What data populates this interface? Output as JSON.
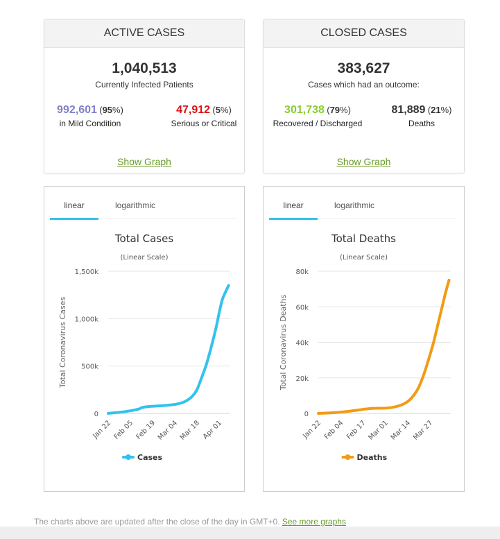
{
  "active_cases": {
    "title": "ACTIVE CASES",
    "total": "1,040,513",
    "total_label": "Currently Infected Patients",
    "mild": {
      "value": "992,601",
      "pct_open": "(",
      "pct": "95",
      "pct_close": "%)",
      "label": "in Mild Condition",
      "color": "#8080cc"
    },
    "serious": {
      "value": "47,912",
      "pct_open": "(",
      "pct": "5",
      "pct_close": "%)",
      "label": "Serious or Critical",
      "color": "#dd1111"
    },
    "show_graph": "Show Graph"
  },
  "closed_cases": {
    "title": "CLOSED CASES",
    "total": "383,627",
    "total_label": "Cases which had an outcome:",
    "recovered": {
      "value": "301,738",
      "pct_open": "(",
      "pct": "79",
      "pct_close": "%)",
      "label": "Recovered / Discharged",
      "color": "#8acb33"
    },
    "deaths": {
      "value": "81,889",
      "pct_open": "(",
      "pct": "21",
      "pct_close": "%)",
      "label": "Deaths",
      "color": "#333333"
    },
    "show_graph": "Show Graph"
  },
  "tabs": {
    "linear": "linear",
    "logarithmic": "logarithmic"
  },
  "chart_data": [
    {
      "type": "line",
      "title": "Total Cases",
      "subtitle": "(Linear Scale)",
      "xlabel": "",
      "ylabel": "Total Coronavirus Cases",
      "ylim": [
        0,
        1500000
      ],
      "yticks": [
        0,
        500000,
        1000000,
        1500000
      ],
      "ytick_labels": [
        "0",
        "500k",
        "1,000k",
        "1,500k"
      ],
      "xtick_labels": [
        "Jan 22",
        "Feb 05",
        "Feb 19",
        "Mar 04",
        "Mar 18",
        "Apr 01"
      ],
      "xtick_days": [
        0,
        14,
        28,
        42,
        56,
        70
      ],
      "grid": true,
      "legend": "bottom-center",
      "color": "#33c2ee",
      "series": [
        {
          "name": "Cases",
          "x_days": [
            0,
            7,
            14,
            19,
            21,
            23,
            28,
            35,
            42,
            47,
            50,
            53,
            56,
            59,
            62,
            65,
            68,
            70,
            72,
            74,
            76
          ],
          "values": [
            580,
            12000,
            28000,
            45000,
            60000,
            68000,
            76000,
            83000,
            95000,
            115000,
            140000,
            180000,
            250000,
            380000,
            520000,
            700000,
            900000,
            1060000,
            1200000,
            1280000,
            1350000
          ]
        }
      ]
    },
    {
      "type": "line",
      "title": "Total Deaths",
      "subtitle": "(Linear Scale)",
      "xlabel": "",
      "ylabel": "Total Coronavirus Deaths",
      "ylim": [
        0,
        80000
      ],
      "yticks": [
        0,
        20000,
        40000,
        60000,
        80000
      ],
      "ytick_labels": [
        "0",
        "20k",
        "40k",
        "60k",
        "80k"
      ],
      "xtick_labels": [
        "Jan 22",
        "Feb 04",
        "Feb 17",
        "Mar 01",
        "Mar 14",
        "Mar 27"
      ],
      "xtick_days": [
        0,
        13,
        26,
        39,
        52,
        65
      ],
      "grid": true,
      "legend": "bottom-center",
      "color": "#f29b14",
      "series": [
        {
          "name": "Deaths",
          "x_days": [
            0,
            10,
            20,
            26,
            32,
            39,
            45,
            50,
            54,
            58,
            61,
            64,
            67,
            70,
            72,
            74,
            76
          ],
          "values": [
            17,
            500,
            1500,
            2300,
            2900,
            3000,
            3800,
            5500,
            8500,
            14000,
            21000,
            30000,
            40000,
            52000,
            60000,
            68000,
            75000
          ]
        }
      ]
    }
  ],
  "footer": {
    "text": "The charts above are updated after the close of the day in GMT+0. ",
    "link": "See more graphs"
  }
}
